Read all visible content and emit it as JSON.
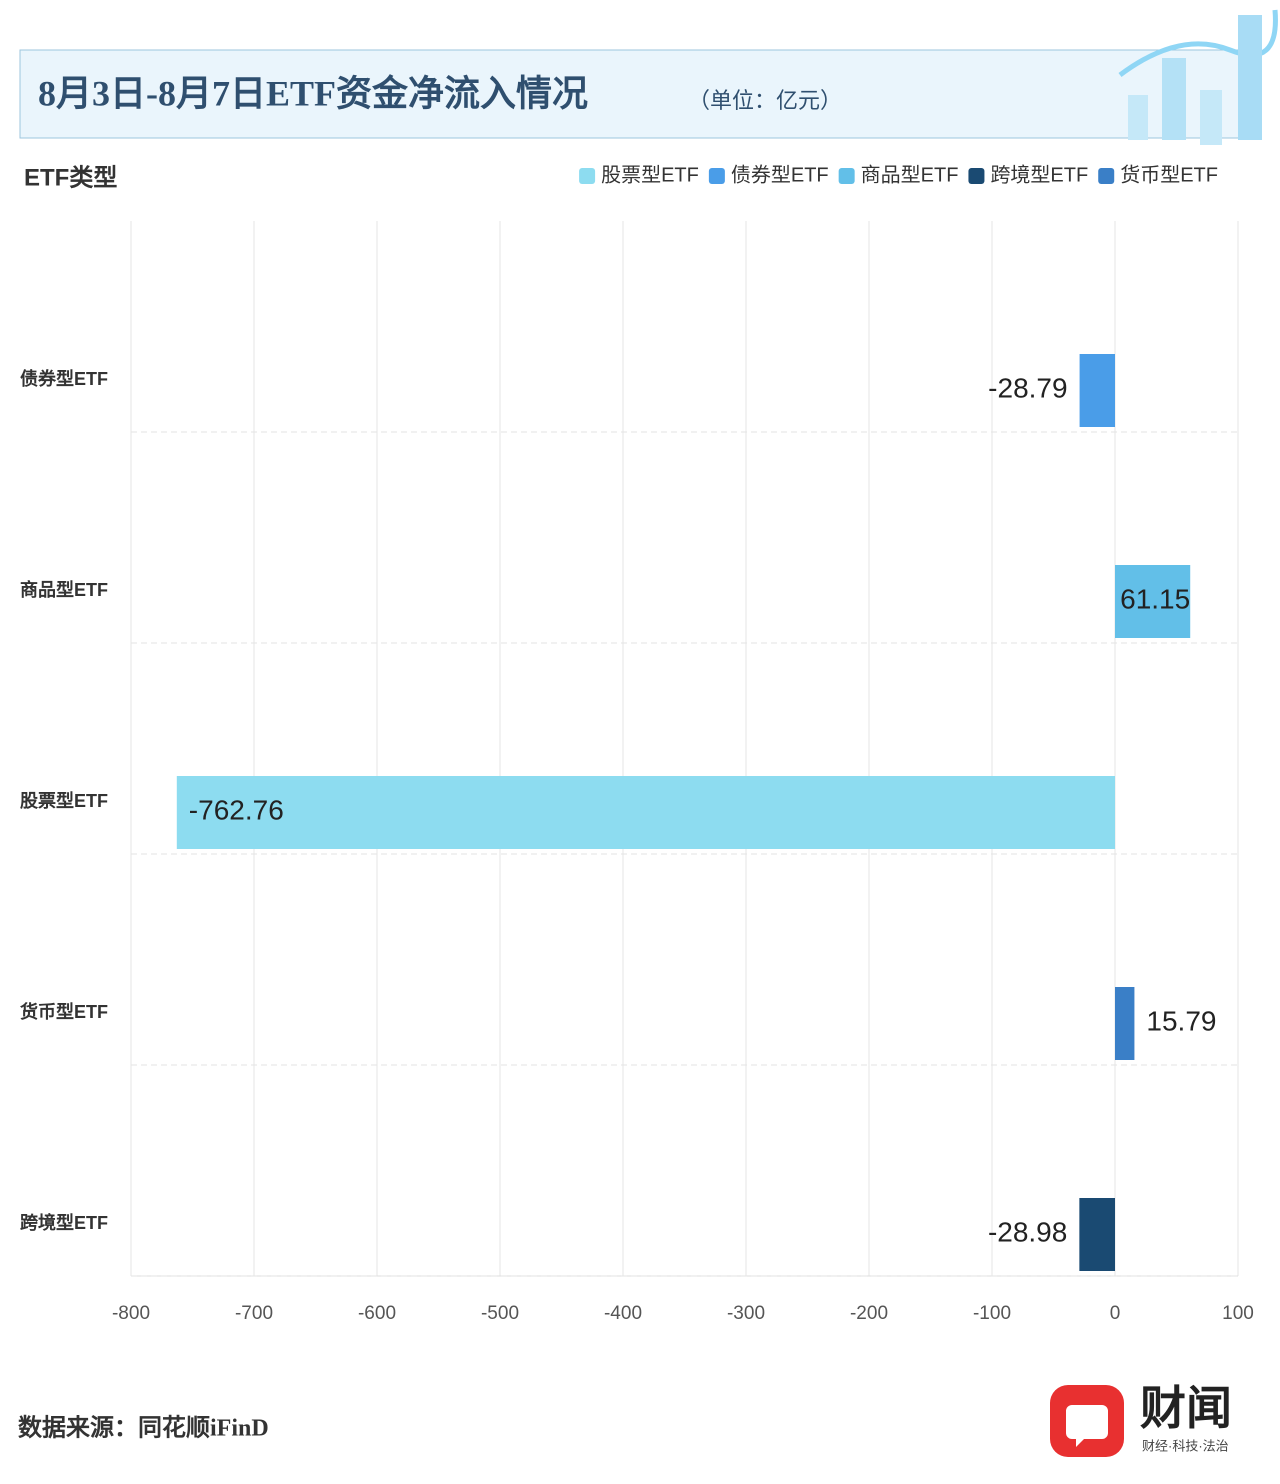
{
  "chart_data": {
    "type": "hbar",
    "title": "8月3日-8月7日ETF资金净流入情况",
    "subtitle": "（单位：亿元）",
    "y_label": "ETF类型",
    "legend": [
      {
        "name": "股票型ETF",
        "color": "#8ddcf0"
      },
      {
        "name": "债券型ETF",
        "color": "#4a9de8"
      },
      {
        "name": "商品型ETF",
        "color": "#62bfe8"
      },
      {
        "name": "跨境型ETF",
        "color": "#1a4a72"
      },
      {
        "name": "货币型ETF",
        "color": "#3a7fc7"
      }
    ],
    "categories": [
      "债券型ETF",
      "商品型ETF",
      "股票型ETF",
      "货币型ETF",
      "跨境型ETF"
    ],
    "values": [
      -28.79,
      61.15,
      -762.76,
      15.79,
      -28.98
    ],
    "colors": [
      "#4a9de8",
      "#62bfe8",
      "#8ddcf0",
      "#3a7fc7",
      "#1a4a72"
    ],
    "xlim": [
      -800,
      100
    ],
    "xticks": [
      -800,
      -700,
      -600,
      -500,
      -400,
      -300,
      -200,
      -100,
      0,
      100
    ],
    "grid": true
  },
  "footer": {
    "source": "数据来源：同花顺iFinD",
    "brand": "财闻",
    "slogan": "财经·科技·法治"
  }
}
